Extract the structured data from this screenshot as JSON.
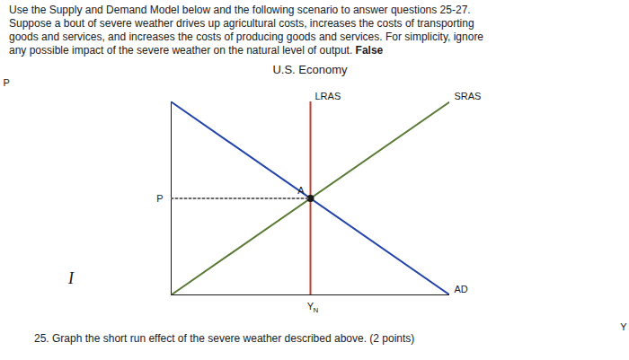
{
  "chart_data": {
    "type": "line",
    "title": "U.S. Economy",
    "subtitle": [
      "Use the Supply and Demand Model below and the following scenario to answer questions 25-27.",
      "Suppose a bout of severe weather drives up agricultural costs, increases the costs of transporting",
      "goods and services, and increases the costs of producing goods and services. For simplicity, ignore",
      "any possible impact of the severe weather on the natural level of output."
    ],
    "subtitle_bold": "False",
    "caption": "25. Graph the short run effect of the severe weather described above. (2 points)",
    "annotations": [
      "I"
    ],
    "x_label": "Y",
    "y_label": "P",
    "xlim": [
      0,
      10
    ],
    "ylim": [
      0,
      10
    ],
    "xticks": [
      {
        "value": 5,
        "label": "Y",
        "sub": "N"
      }
    ],
    "yticks": [
      {
        "value": 5,
        "label": "P"
      }
    ],
    "series": [
      {
        "name": "AD",
        "color": "#2244aa",
        "x": [
          0,
          10
        ],
        "values": [
          10,
          0
        ]
      },
      {
        "name": "SRAS",
        "color": "#5a7a35",
        "x": [
          0,
          10
        ],
        "values": [
          0,
          10
        ]
      },
      {
        "name": "LRAS",
        "color": "#c04030",
        "x": [
          5,
          5
        ],
        "values": [
          0,
          10
        ]
      },
      {
        "name": "A",
        "type": "scatter",
        "color": "#1a1a1a",
        "x": [
          5
        ],
        "values": [
          5
        ]
      },
      {
        "line_style": "dotted",
        "color": "#666666",
        "x": [
          0,
          5
        ],
        "values": [
          5,
          5
        ]
      }
    ]
  }
}
